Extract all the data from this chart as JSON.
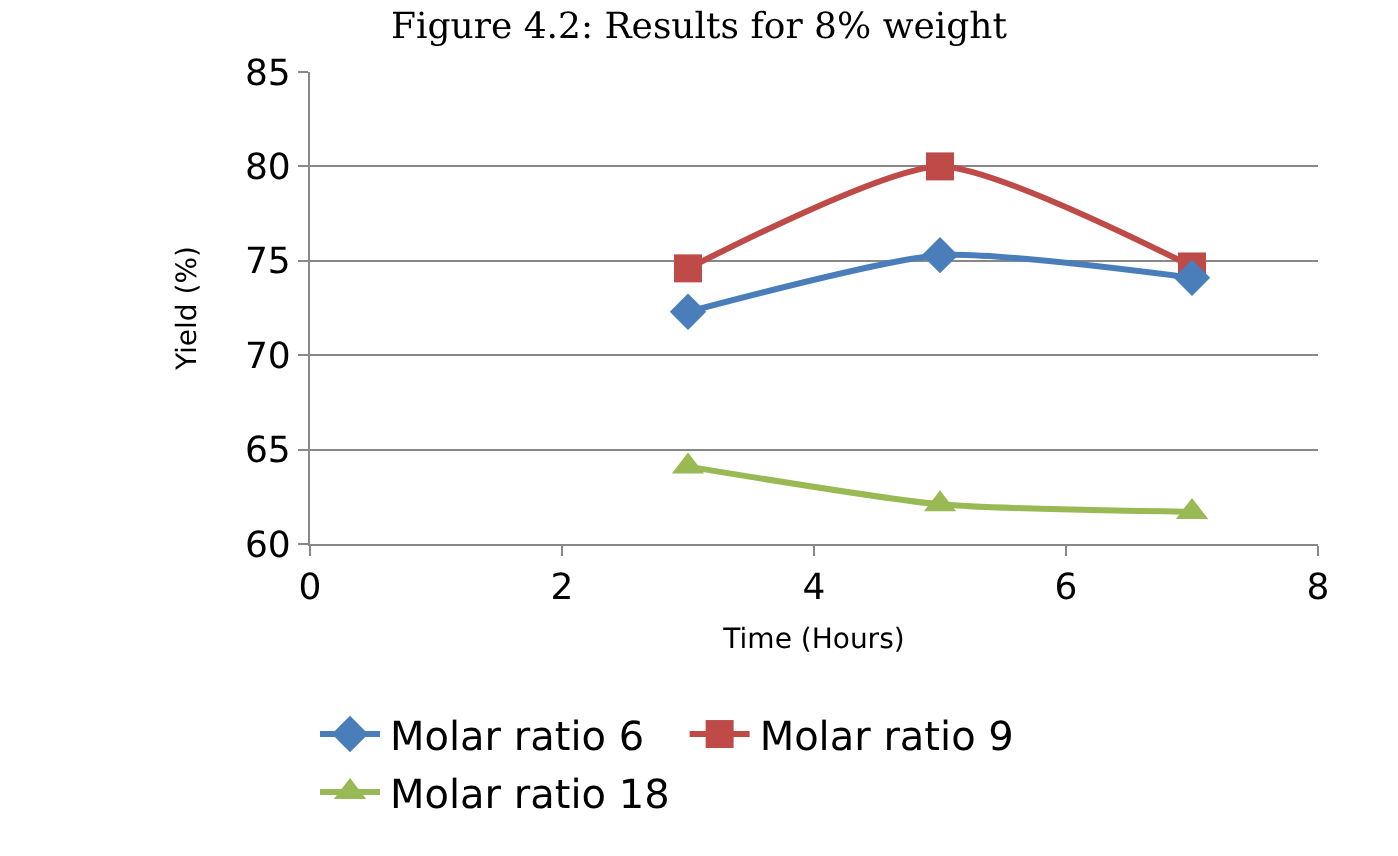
{
  "chart_data": {
    "type": "line",
    "title": "Figure 4.2: Results for 8% weight",
    "xlabel": "Time (Hours)",
    "ylabel": "Yield (%)",
    "x": [
      3,
      5,
      7
    ],
    "series": [
      {
        "name": "Molar ratio 6",
        "color": "#4a7ebb",
        "marker": "diamond",
        "values": [
          72.3,
          75.3,
          74.1
        ]
      },
      {
        "name": "Molar ratio 9",
        "color": "#be4b48",
        "marker": "square",
        "values": [
          74.6,
          80.0,
          74.7
        ]
      },
      {
        "name": "Molar ratio 18",
        "color": "#98b954",
        "marker": "triangle",
        "values": [
          64.1,
          62.1,
          61.7
        ]
      }
    ],
    "xlim": [
      0,
      8
    ],
    "xticks": [
      0,
      2,
      4,
      6,
      8
    ],
    "ylim": [
      60,
      85
    ],
    "yticks": [
      60,
      65,
      70,
      75,
      80,
      85
    ],
    "grid": "y",
    "legend": "bottom",
    "line_style": "solid"
  }
}
